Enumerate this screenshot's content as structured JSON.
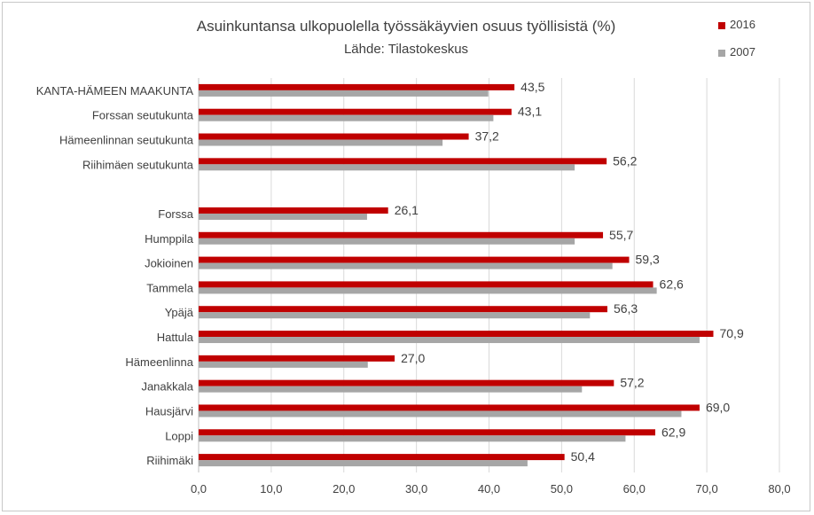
{
  "chart_data": {
    "type": "bar",
    "orientation": "horizontal",
    "title": "Asuinkuntansa ulkopuolella työssäkäyvien osuus työllisistä (%)",
    "subtitle": "Lähde: Tilastokeskus",
    "categories": [
      "KANTA-HÄMEEN MAAKUNTA",
      "Forssan seutukunta",
      "Hämeenlinnan seutukunta",
      "Riihimäen seutukunta",
      "",
      "Forssa",
      "Humppila",
      "Jokioinen",
      "Tammela",
      "Ypäjä",
      "Hattula",
      "Hämeenlinna",
      "Janakkala",
      "Hausjärvi",
      "Loppi",
      "Riihimäki"
    ],
    "series": [
      {
        "name": "2016",
        "color": "#C00000",
        "values": [
          43.5,
          43.1,
          37.2,
          56.2,
          null,
          26.1,
          55.7,
          59.3,
          62.6,
          56.3,
          70.9,
          27.0,
          57.2,
          69.0,
          62.9,
          50.4
        ],
        "labels": [
          "43,5",
          "43,1",
          "37,2",
          "56,2",
          "",
          "26,1",
          "55,7",
          "59,3",
          "62,6",
          "56,3",
          "70,9",
          "27,0",
          "57,2",
          "69,0",
          "62,9",
          "50,4"
        ]
      },
      {
        "name": "2007",
        "color": "#A6A6A6",
        "values": [
          39.9,
          40.6,
          33.6,
          51.8,
          null,
          23.2,
          51.8,
          57.0,
          63.1,
          53.9,
          69.0,
          23.3,
          52.8,
          66.5,
          58.8,
          45.3
        ]
      }
    ],
    "xlim": [
      0,
      80
    ],
    "xticks": [
      0,
      10,
      20,
      30,
      40,
      50,
      60,
      70,
      80
    ],
    "xtick_labels": [
      "0,0",
      "10,0",
      "20,0",
      "30,0",
      "40,0",
      "50,0",
      "60,0",
      "70,0",
      "80,0"
    ],
    "grid": "vertical",
    "legend": "top-right"
  }
}
